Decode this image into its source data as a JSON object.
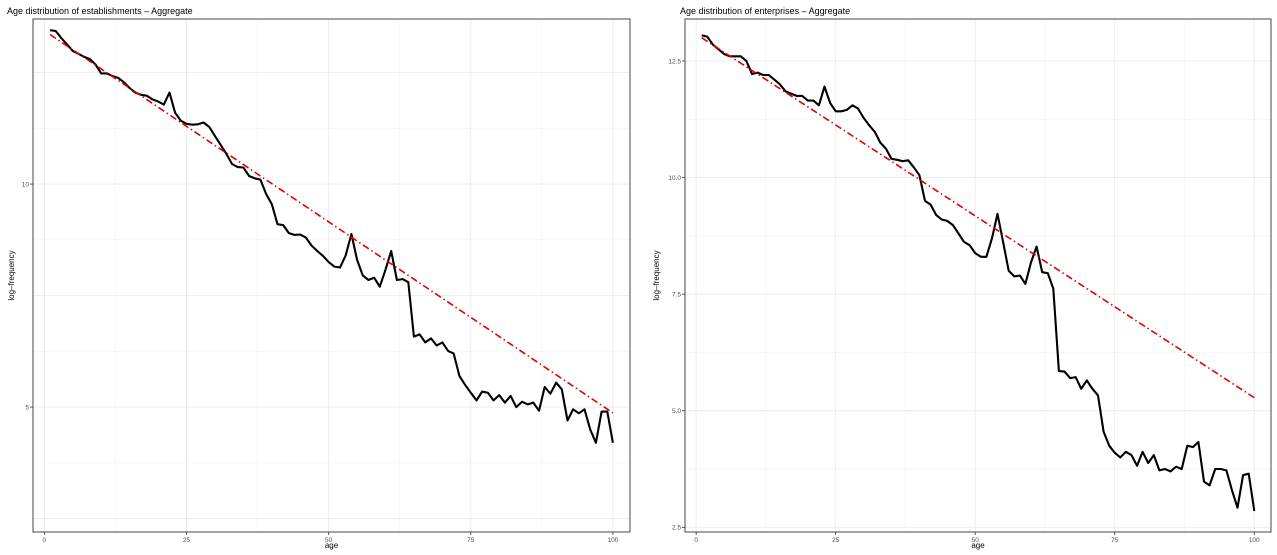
{
  "chart_data": [
    {
      "type": "line",
      "title": "Age distribution of establishments – Aggregate",
      "xlabel": "age",
      "ylabel": "log–frequency",
      "xlim": [
        -2,
        103
      ],
      "ylim": [
        2.2,
        13.7
      ],
      "x_ticks": [
        0,
        25,
        50,
        75,
        100
      ],
      "x_tick_labels": [
        "0",
        "25",
        "50",
        "75",
        "100"
      ],
      "y_ticks": [
        5,
        10
      ],
      "y_tick_labels": [
        "5",
        "10"
      ],
      "y_grid_major": [
        2.5,
        5,
        7.5,
        10,
        12.5
      ],
      "grid": true,
      "legend": "none",
      "series": [
        {
          "style": "solid",
          "color": "#000000",
          "x": [
            1,
            2,
            3,
            4,
            5,
            6,
            7,
            8,
            9,
            10,
            11,
            12,
            13,
            14,
            15,
            16,
            17,
            18,
            19,
            20,
            21,
            22,
            23,
            24,
            25,
            26,
            27,
            28,
            29,
            30,
            31,
            32,
            33,
            34,
            35,
            36,
            37,
            38,
            39,
            40,
            41,
            42,
            43,
            44,
            45,
            46,
            47,
            48,
            49,
            50,
            51,
            52,
            53,
            54,
            55,
            56,
            57,
            58,
            59,
            60,
            61,
            62,
            63,
            64,
            65,
            66,
            67,
            68,
            69,
            70,
            71,
            72,
            73,
            74,
            75,
            76,
            77,
            78,
            79,
            80,
            81,
            82,
            83,
            84,
            85,
            86,
            87,
            88,
            89,
            90,
            91,
            92,
            93,
            94,
            95,
            96,
            97,
            98,
            99,
            100
          ],
          "y": [
            13.45,
            13.43,
            13.27,
            13.13,
            12.98,
            12.92,
            12.85,
            12.8,
            12.68,
            12.48,
            12.48,
            12.42,
            12.38,
            12.28,
            12.15,
            12.05,
            12.0,
            11.98,
            11.9,
            11.85,
            11.78,
            12.05,
            11.6,
            11.42,
            11.35,
            11.33,
            11.34,
            11.38,
            11.28,
            11.08,
            10.88,
            10.68,
            10.45,
            10.38,
            10.37,
            10.18,
            10.13,
            10.1,
            9.78,
            9.55,
            9.1,
            9.08,
            8.9,
            8.86,
            8.87,
            8.8,
            8.62,
            8.5,
            8.39,
            8.25,
            8.15,
            8.13,
            8.4,
            8.88,
            8.3,
            7.95,
            7.85,
            7.9,
            7.7,
            8.08,
            8.5,
            7.85,
            7.87,
            7.8,
            6.58,
            6.63,
            6.45,
            6.54,
            6.38,
            6.45,
            6.26,
            6.2,
            5.7,
            5.5,
            5.32,
            5.15,
            5.35,
            5.32,
            5.15,
            5.27,
            5.1,
            5.25,
            5.0,
            5.12,
            5.06,
            5.1,
            4.92,
            5.45,
            5.3,
            5.55,
            5.4,
            4.7,
            4.95,
            4.86,
            4.95,
            4.5,
            4.2,
            4.9,
            4.9,
            4.2
          ]
        },
        {
          "style": "dashdot",
          "color": "#e00000",
          "x": [
            1,
            100
          ],
          "y": [
            13.35,
            4.87
          ]
        }
      ]
    },
    {
      "type": "line",
      "title": "Age distribution of enterprises – Aggregate",
      "xlabel": "age",
      "ylabel": "log–frequency",
      "xlim": [
        -2,
        103
      ],
      "ylim": [
        2.4,
        13.4
      ],
      "x_ticks": [
        0,
        25,
        50,
        75,
        100
      ],
      "x_tick_labels": [
        "0",
        "25",
        "50",
        "75",
        "100"
      ],
      "y_ticks": [
        2.5,
        5.0,
        7.5,
        10.0,
        12.5
      ],
      "y_tick_labels": [
        "2.5",
        "5.0",
        "7.5",
        "10.0",
        "12.5"
      ],
      "grid": true,
      "legend": "none",
      "series": [
        {
          "style": "solid",
          "color": "#000000",
          "x": [
            1,
            2,
            3,
            4,
            5,
            6,
            7,
            8,
            9,
            10,
            11,
            12,
            13,
            14,
            15,
            16,
            17,
            18,
            19,
            20,
            21,
            22,
            23,
            24,
            25,
            26,
            27,
            28,
            29,
            30,
            31,
            32,
            33,
            34,
            35,
            36,
            37,
            38,
            39,
            40,
            41,
            42,
            43,
            44,
            45,
            46,
            47,
            48,
            49,
            50,
            51,
            52,
            53,
            54,
            55,
            56,
            57,
            58,
            59,
            60,
            61,
            62,
            63,
            64,
            65,
            66,
            67,
            68,
            69,
            70,
            71,
            72,
            73,
            74,
            75,
            76,
            77,
            78,
            79,
            80,
            81,
            82,
            83,
            84,
            85,
            86,
            87,
            88,
            89,
            90,
            91,
            92,
            93,
            94,
            95,
            96,
            97,
            98,
            99,
            100
          ],
          "y": [
            13.05,
            13.02,
            12.85,
            12.75,
            12.65,
            12.6,
            12.6,
            12.6,
            12.5,
            12.22,
            12.25,
            12.2,
            12.2,
            12.1,
            12.0,
            11.85,
            11.8,
            11.75,
            11.75,
            11.65,
            11.65,
            11.55,
            11.95,
            11.6,
            11.42,
            11.42,
            11.45,
            11.55,
            11.48,
            11.28,
            11.12,
            10.98,
            10.75,
            10.62,
            10.4,
            10.38,
            10.35,
            10.37,
            10.22,
            10.05,
            9.5,
            9.42,
            9.2,
            9.1,
            9.07,
            8.98,
            8.8,
            8.62,
            8.55,
            8.38,
            8.3,
            8.3,
            8.7,
            9.22,
            8.62,
            8.0,
            7.88,
            7.9,
            7.72,
            8.18,
            8.52,
            7.97,
            7.95,
            7.62,
            5.85,
            5.84,
            5.7,
            5.72,
            5.47,
            5.65,
            5.47,
            5.33,
            4.55,
            4.25,
            4.1,
            4.0,
            4.12,
            4.05,
            3.82,
            4.12,
            3.88,
            4.05,
            3.72,
            3.75,
            3.7,
            3.8,
            3.75,
            4.25,
            4.22,
            4.33,
            3.48,
            3.4,
            3.75,
            3.75,
            3.72,
            3.3,
            2.92,
            3.62,
            3.65,
            2.85
          ]
        },
        {
          "style": "dashdot",
          "color": "#e00000",
          "x": [
            1,
            100
          ],
          "y": [
            13.0,
            5.28
          ]
        }
      ]
    }
  ]
}
